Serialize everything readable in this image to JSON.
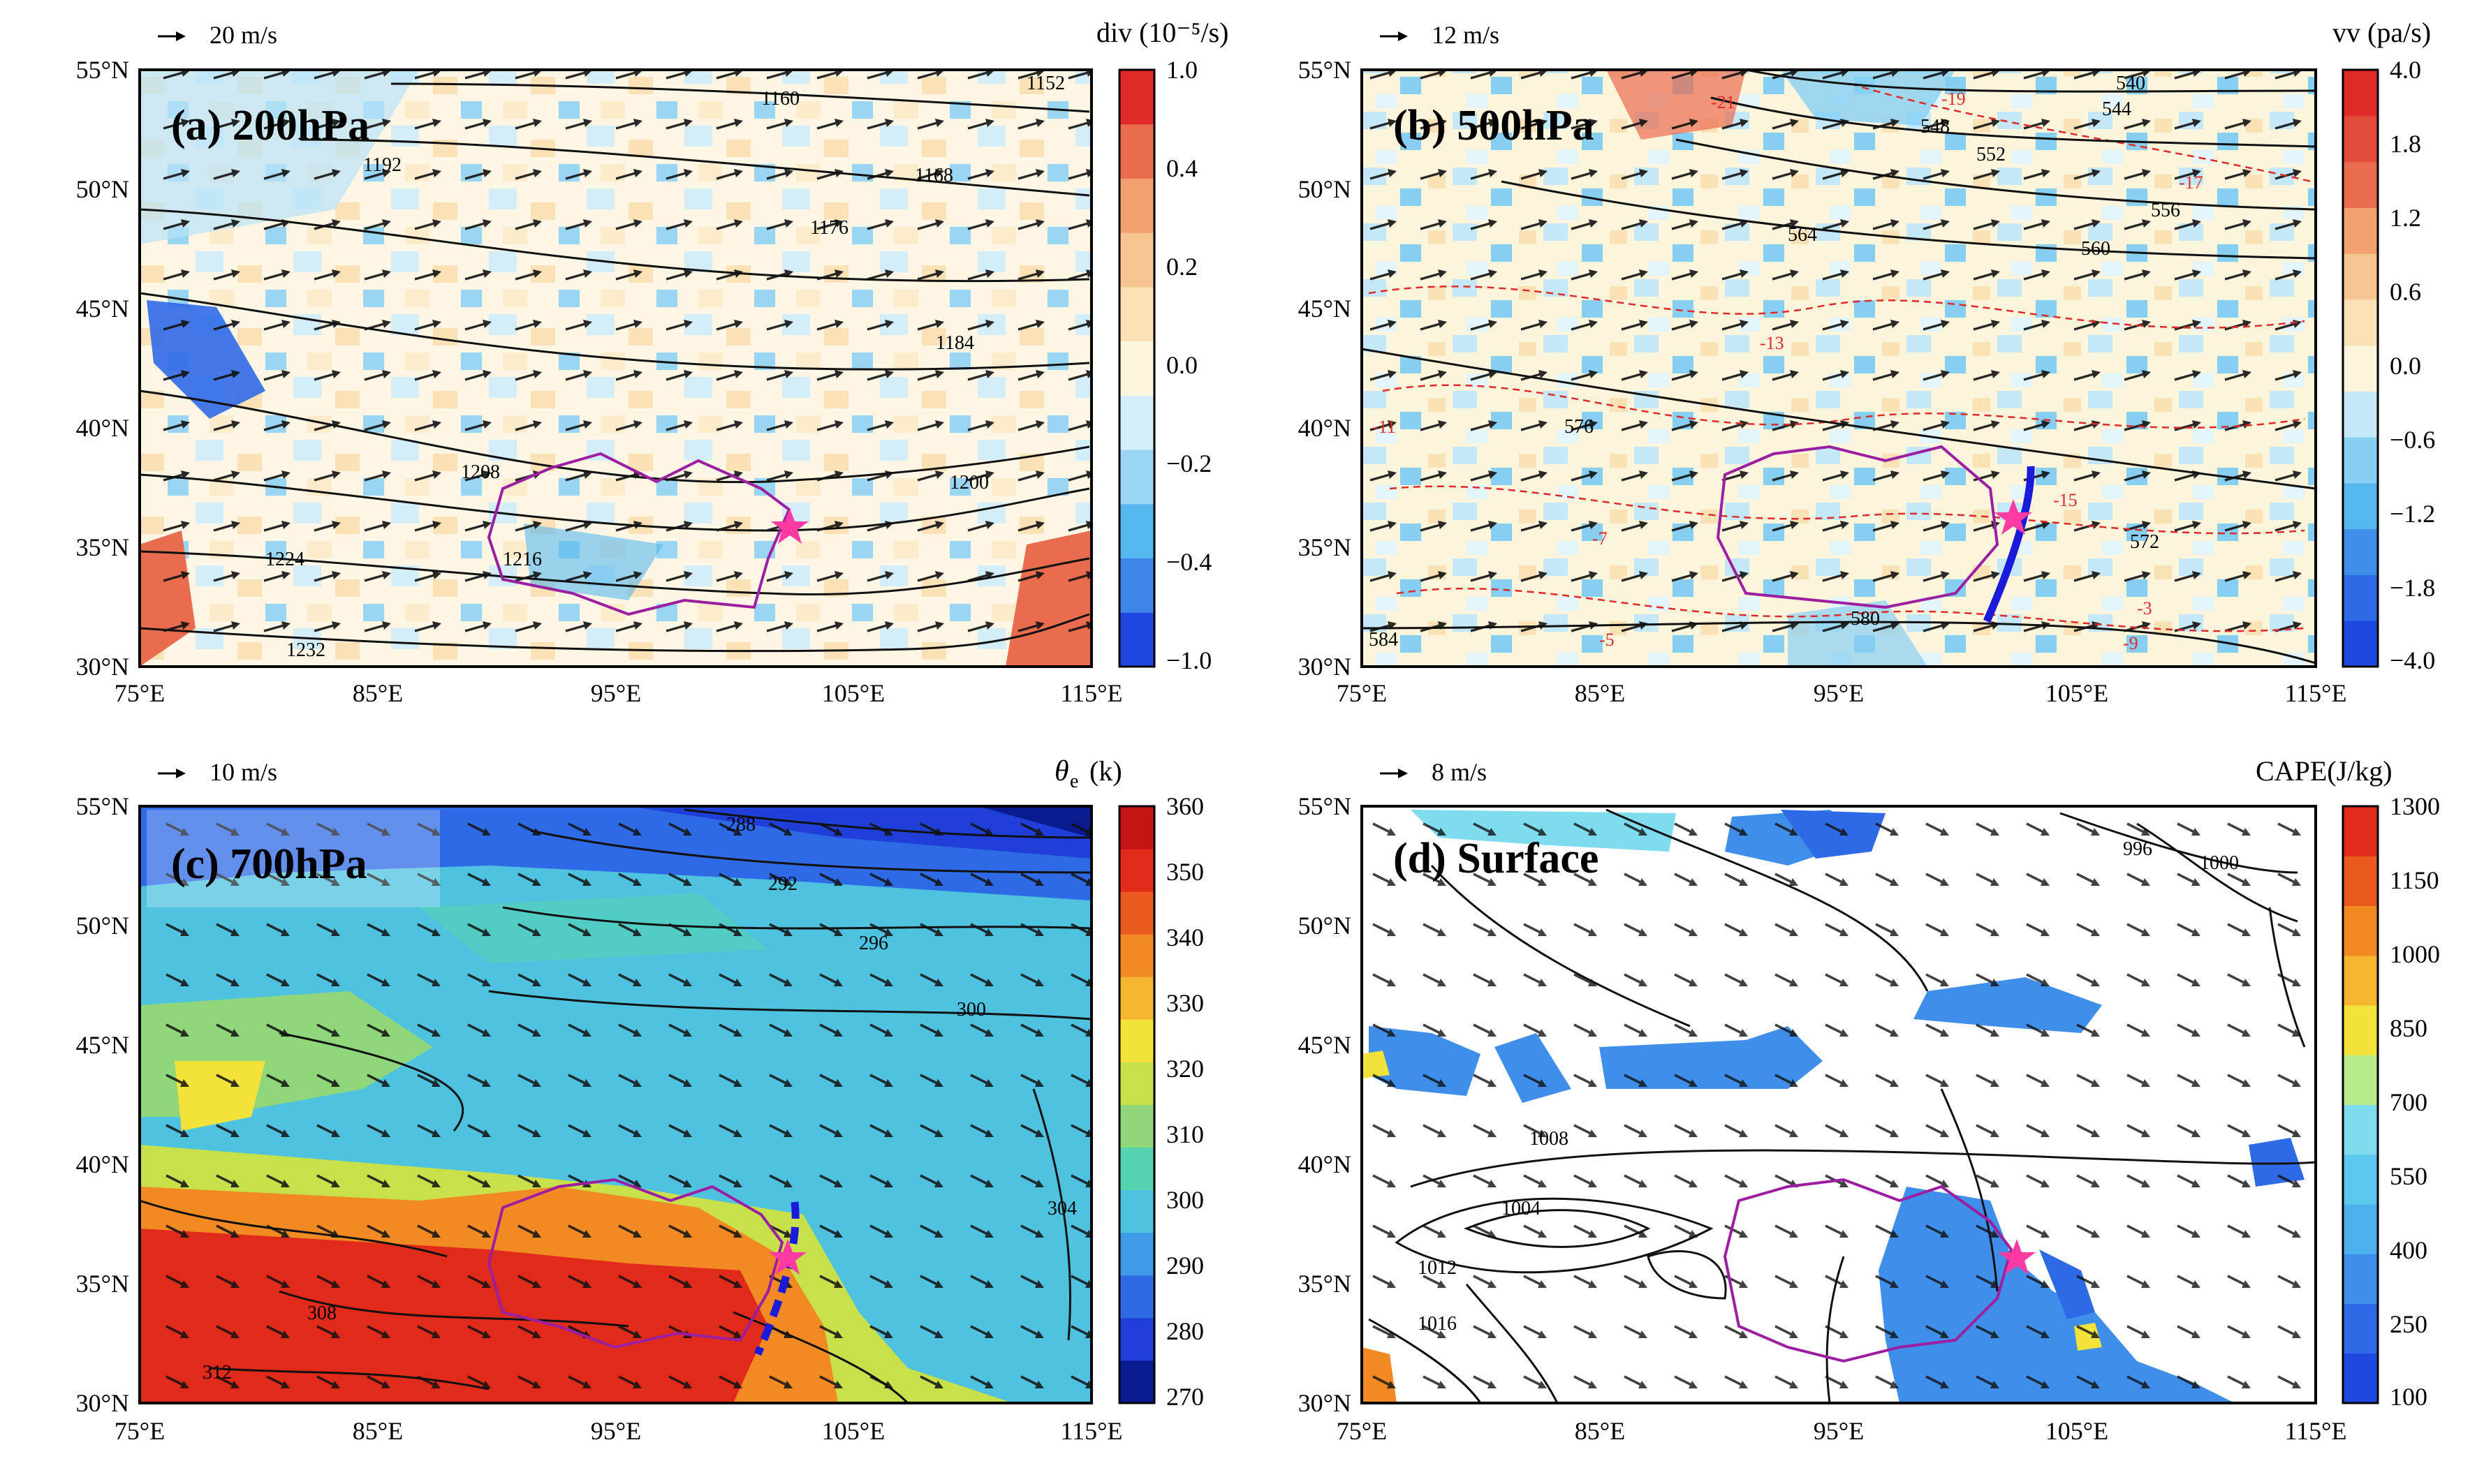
{
  "chart_data": [
    {
      "type": "heatmap",
      "panel": "a",
      "title": "(a) 200hPa",
      "vector_ref": "20 m/s",
      "colorbar_label": "div (10⁻⁵/s)",
      "colorbar_ticks": [
        "1.0",
        "0.4",
        "0.2",
        "0.0",
        "−0.2",
        "−0.4",
        "−1.0"
      ],
      "colorbar_colors": [
        "#1f48e0",
        "#3f84e8",
        "#56b7ee",
        "#9ad6f3",
        "#d4eef9",
        "#fdf4dc",
        "#fbe2b6",
        "#f6c48e",
        "#f1a06e",
        "#e96c4f",
        "#e02a2a"
      ],
      "x_ticks": [
        "75°E",
        "85°E",
        "95°E",
        "105°E",
        "115°E"
      ],
      "y_ticks": [
        "55°N",
        "50°N",
        "45°N",
        "40°N",
        "35°N",
        "30°N"
      ],
      "xlim": [
        75,
        115
      ],
      "ylim": [
        30,
        55
      ],
      "contour_labels": [
        "1152",
        "1160",
        "1168",
        "1176",
        "1184",
        "1192",
        "1200",
        "1208",
        "1216",
        "1224",
        "1232"
      ]
    },
    {
      "type": "heatmap",
      "panel": "b",
      "title": "(b) 500hPa",
      "vector_ref": "12 m/s",
      "colorbar_label": "vv (pa/s)",
      "colorbar_ticks": [
        "4.0",
        "1.8",
        "1.2",
        "0.6",
        "0.0",
        "−0.6",
        "−1.2",
        "−1.8",
        "−4.0"
      ],
      "colorbar_colors": [
        "#1f48e0",
        "#2f6ae6",
        "#3f8ee9",
        "#56b7ee",
        "#86cff2",
        "#c4e8f8",
        "#fdf4dc",
        "#fbe2b6",
        "#f6c48e",
        "#f1a06e",
        "#e96c4f",
        "#e24a3a",
        "#e02a2a"
      ],
      "x_ticks": [
        "75°E",
        "85°E",
        "95°E",
        "105°E",
        "115°E"
      ],
      "y_ticks": [
        "55°N",
        "50°N",
        "45°N",
        "40°N",
        "35°N",
        "30°N"
      ],
      "xlim": [
        75,
        115
      ],
      "ylim": [
        30,
        55
      ],
      "contour_labels": [
        "540",
        "544",
        "548",
        "552",
        "556",
        "560",
        "564",
        "572",
        "576",
        "580",
        "584"
      ],
      "dashed_labels": [
        "-21",
        "-19",
        "-17",
        "-15",
        "-13",
        "-11",
        "-9",
        "-7",
        "-5",
        "-3"
      ]
    },
    {
      "type": "heatmap",
      "panel": "c",
      "title": "(c) 700hPa",
      "vector_ref": "10 m/s",
      "colorbar_label_main": "θ",
      "colorbar_label_sub": "e",
      "colorbar_label_unit": "(k)",
      "colorbar_ticks": [
        "360",
        "350",
        "340",
        "330",
        "320",
        "310",
        "300",
        "290",
        "280",
        "270"
      ],
      "colorbar_colors": [
        "#0a1a8f",
        "#1f3fd8",
        "#2f6ae6",
        "#3f9ae9",
        "#4fc2e0",
        "#55d3b0",
        "#8fd77a",
        "#c8e04a",
        "#f2e23a",
        "#f5b52e",
        "#f28a24",
        "#ea5a1e",
        "#e02a1a",
        "#c41414"
      ],
      "x_ticks": [
        "75°E",
        "85°E",
        "95°E",
        "105°E",
        "115°E"
      ],
      "y_ticks": [
        "55°N",
        "50°N",
        "45°N",
        "40°N",
        "35°N",
        "30°N"
      ],
      "xlim": [
        75,
        115
      ],
      "ylim": [
        30,
        55
      ],
      "contour_labels": [
        "288",
        "292",
        "296",
        "300",
        "304",
        "308",
        "312"
      ]
    },
    {
      "type": "heatmap",
      "panel": "d",
      "title": "(d) Surface",
      "vector_ref": "8 m/s",
      "colorbar_label": "CAPE(J/kg)",
      "colorbar_ticks": [
        "1300",
        "1150",
        "1000",
        "850",
        "700",
        "550",
        "400",
        "250",
        "100"
      ],
      "colorbar_colors": [
        "#1f48e0",
        "#2f6ae6",
        "#3f8ee9",
        "#4fb0ee",
        "#5cc8ee",
        "#7fdcee",
        "#b8ec8a",
        "#f2e23a",
        "#f5b52e",
        "#f28a24",
        "#ea5a1e",
        "#e02a1a"
      ],
      "x_ticks": [
        "75°E",
        "85°E",
        "95°E",
        "105°E",
        "115°E"
      ],
      "y_ticks": [
        "55°N",
        "50°N",
        "45°N",
        "40°N",
        "35°N",
        "30°N"
      ],
      "xlim": [
        75,
        115
      ],
      "ylim": [
        30,
        55
      ],
      "contour_labels": [
        "996",
        "1000",
        "1004",
        "1008",
        "1012",
        "1016"
      ]
    }
  ]
}
